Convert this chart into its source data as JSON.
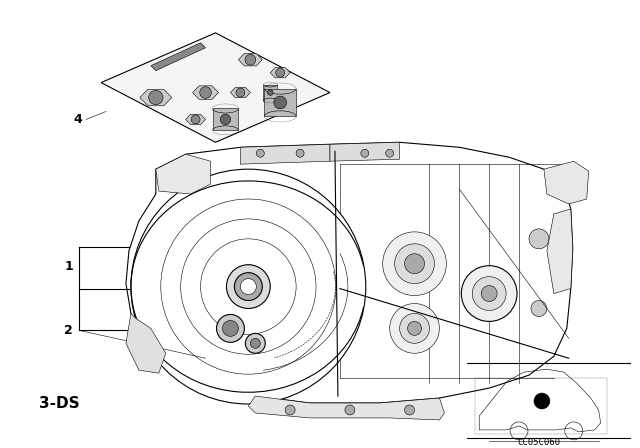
{
  "background_color": "#ffffff",
  "fig_width": 6.4,
  "fig_height": 4.48,
  "dpi": 100,
  "label_1": "1",
  "label_2": "2",
  "label_4": "4",
  "label_3ds": "3-DS",
  "code_text": "CC05C060",
  "line_color": "#000000",
  "lw": 0.8,
  "tlw": 0.4,
  "label_fontsize": 9,
  "code_fontsize": 6.5,
  "ds_fontsize": 11
}
